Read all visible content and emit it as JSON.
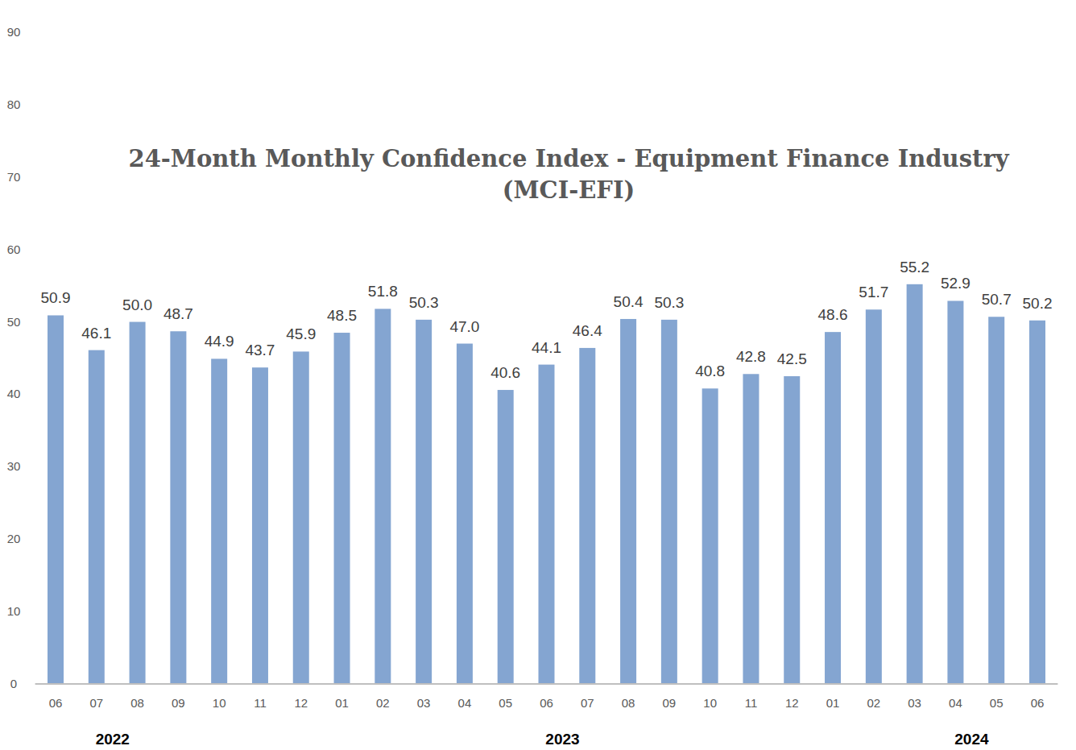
{
  "chart_data": {
    "type": "bar",
    "title": "24-Month Monthly Confidence Index - Equipment Finance Industry (MCI-EFI)",
    "categories": [
      "06",
      "07",
      "08",
      "09",
      "10",
      "11",
      "12",
      "01",
      "02",
      "03",
      "04",
      "05",
      "06",
      "07",
      "08",
      "09",
      "10",
      "11",
      "12",
      "01",
      "02",
      "03",
      "04",
      "05",
      "06"
    ],
    "values": [
      50.9,
      46.1,
      50.0,
      48.7,
      44.9,
      43.7,
      45.9,
      48.5,
      51.8,
      50.3,
      47.0,
      40.6,
      44.1,
      46.4,
      50.4,
      50.3,
      40.8,
      42.8,
      42.5,
      48.6,
      51.7,
      55.2,
      52.9,
      50.7,
      50.2
    ],
    "value_labels": [
      "50.9",
      "46.1",
      "50.0",
      "48.7",
      "44.9",
      "43.7",
      "45.9",
      "48.5",
      "51.8",
      "50.3",
      "47.0",
      "40.6",
      "44.1",
      "46.4",
      "50.4",
      "50.3",
      "40.8",
      "42.8",
      "42.5",
      "48.6",
      "51.7",
      "55.2",
      "52.9",
      "50.7",
      "50.2"
    ],
    "color": "#84a5d1",
    "ylim": [
      0,
      90
    ],
    "yticks": [
      0,
      10,
      20,
      30,
      40,
      50,
      60,
      70,
      80,
      90
    ],
    "grid": false,
    "data_labels": true,
    "annotations": [
      {
        "text": "2022",
        "category_index": 1
      },
      {
        "text": "2023",
        "category_index": 12
      },
      {
        "text": "2024",
        "category_index": 22
      }
    ]
  }
}
